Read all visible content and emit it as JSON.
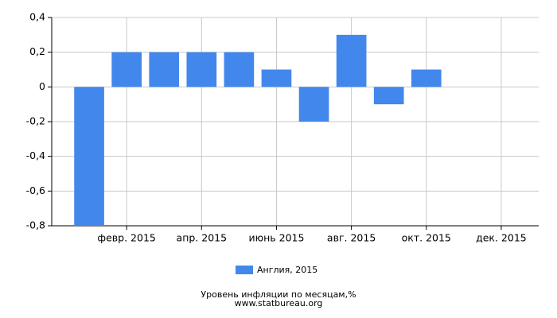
{
  "chart_data": {
    "type": "bar",
    "categories": [
      null,
      "февр. 2015",
      null,
      "апр. 2015",
      null,
      "июнь 2015",
      null,
      "авг. 2015",
      null,
      "окт. 2015",
      null,
      "дек. 2015"
    ],
    "series": [
      {
        "name": "Англия, 2015",
        "color": "#4287ec",
        "values": [
          -0.8,
          0.2,
          0.2,
          0.2,
          0.2,
          0.1,
          -0.2,
          0.3,
          -0.1,
          0.1,
          null,
          null
        ]
      }
    ],
    "ylim": [
      -0.8,
      0.4
    ],
    "yticks": [
      {
        "value": -0.8,
        "label": "-0,8"
      },
      {
        "value": -0.6,
        "label": "-0,6"
      },
      {
        "value": -0.4,
        "label": "-0,4"
      },
      {
        "value": -0.2,
        "label": "-0,2"
      },
      0,
      {
        "value": 0.2,
        "label": "0,2"
      },
      {
        "value": 0.4,
        "label": "0,4"
      }
    ],
    "grid": true,
    "legend": "bottom",
    "x_label": "Уровень инфляции по месяцам,%",
    "source": "www.statbureau.org"
  }
}
